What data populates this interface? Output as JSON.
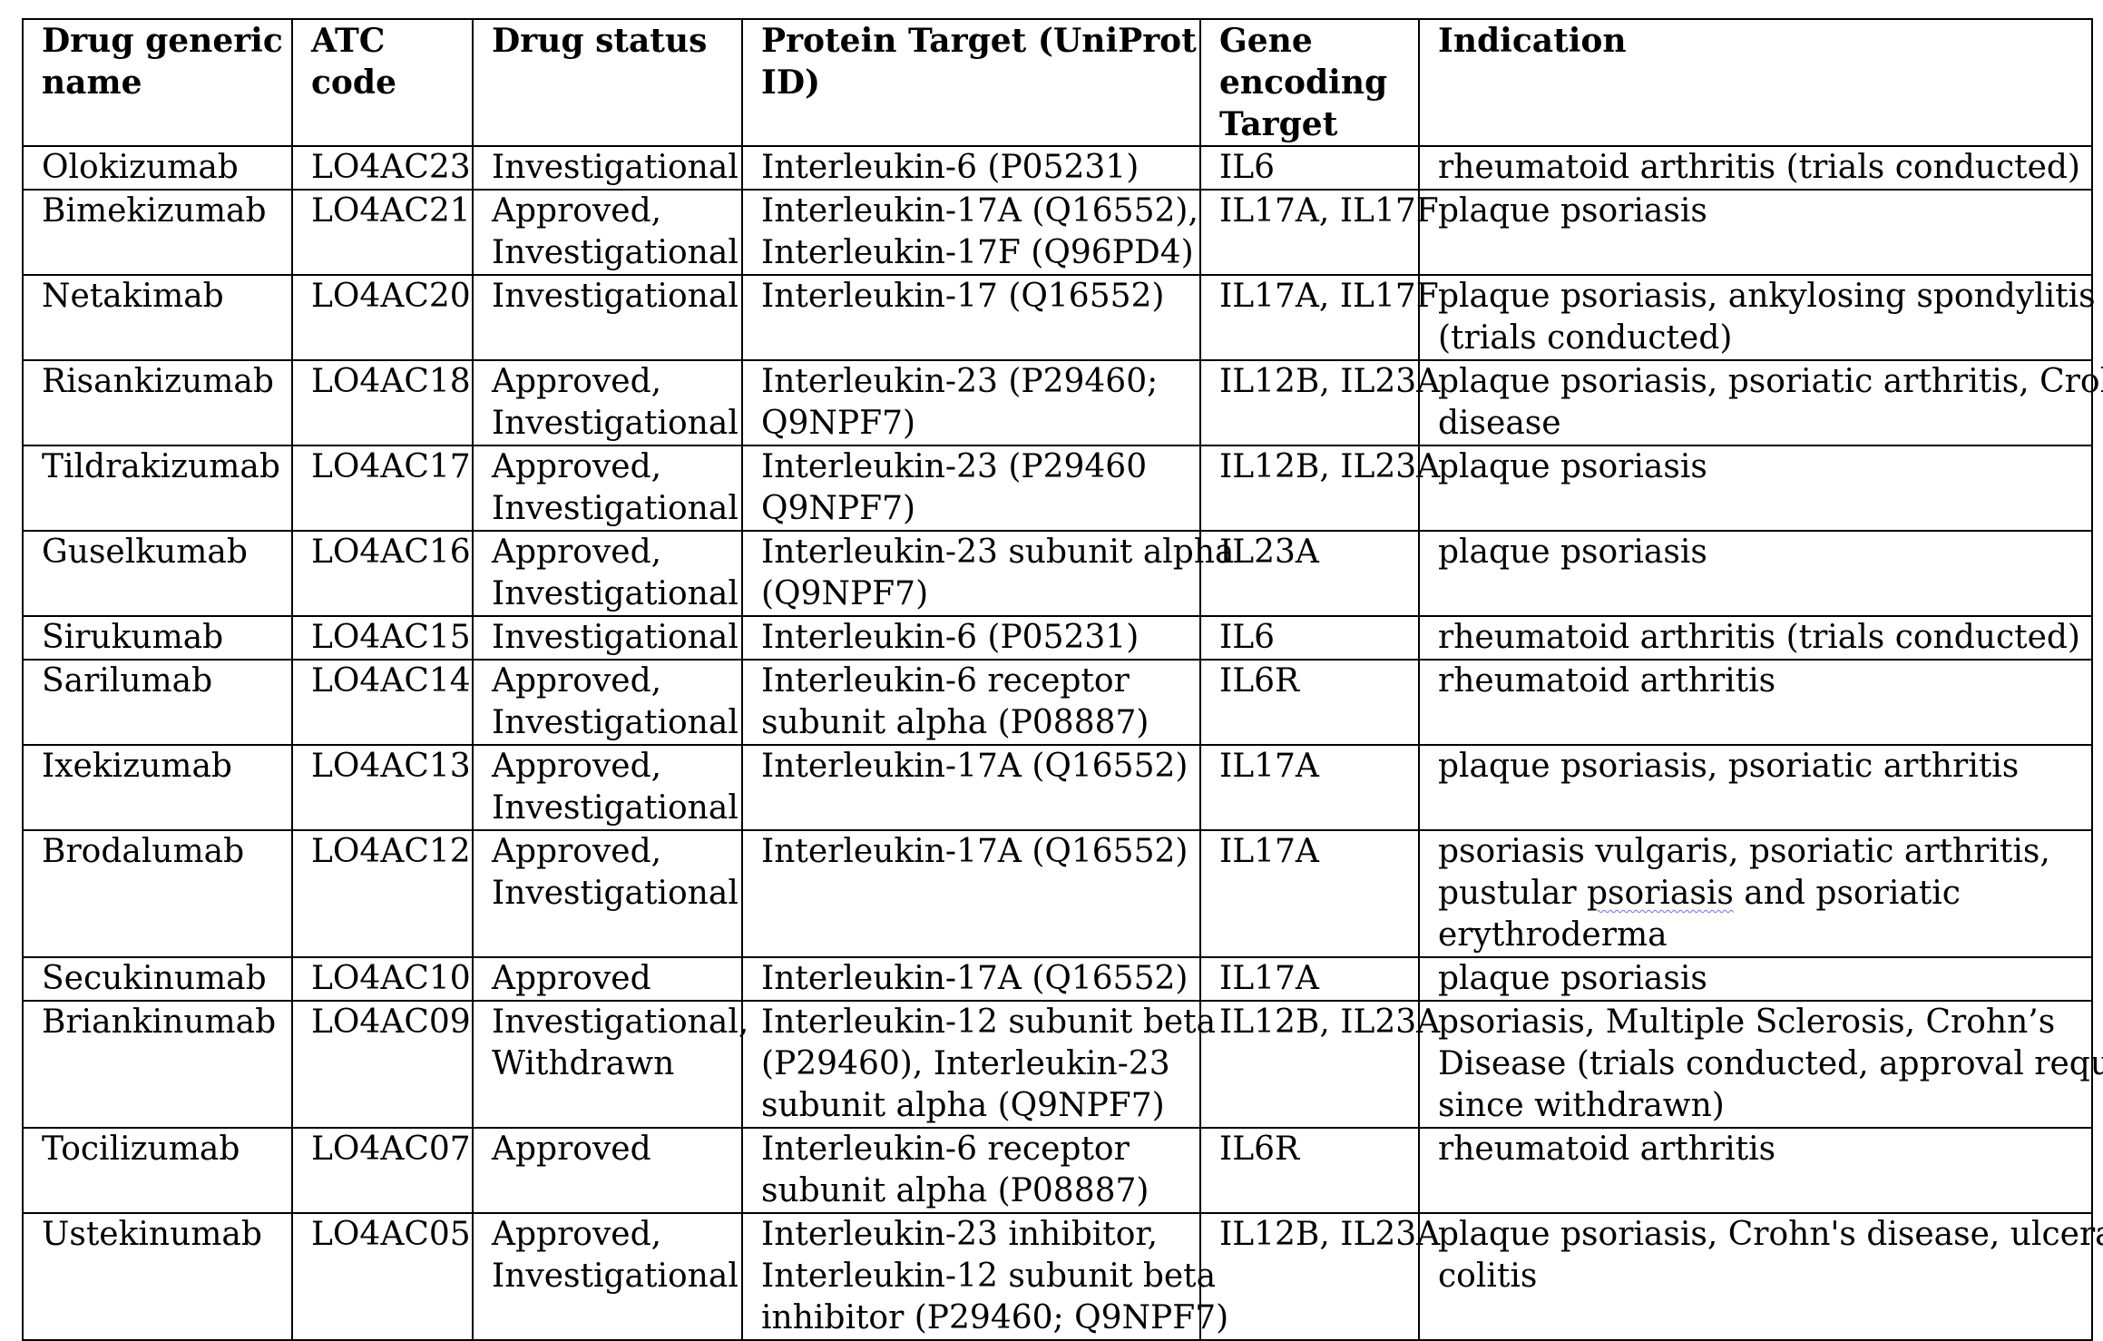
{
  "table": {
    "headers": [
      [
        "Drug generic",
        "name"
      ],
      [
        "ATC",
        "code"
      ],
      [
        "Drug status"
      ],
      [
        "Protein Target (UniProt",
        "ID)"
      ],
      [
        "Gene",
        "encoding",
        "Target"
      ],
      [
        "Indication"
      ]
    ],
    "rows": [
      [
        [
          "Olokizumab"
        ],
        [
          "LO4AC23"
        ],
        [
          "Investigational"
        ],
        [
          "Interleukin-6 (P05231)"
        ],
        [
          "IL6"
        ],
        [
          "rheumatoid arthritis (trials conducted)"
        ]
      ],
      [
        [
          "Bimekizumab"
        ],
        [
          "LO4AC21"
        ],
        [
          "Approved,",
          "Investigational"
        ],
        [
          "Interleukin-17A (Q16552),",
          "Interleukin-17F (Q96PD4)"
        ],
        [
          "IL17A, IL17F"
        ],
        [
          "plaque psoriasis"
        ]
      ],
      [
        [
          "Netakimab"
        ],
        [
          "LO4AC20"
        ],
        [
          "Investigational"
        ],
        [
          "Interleukin-17 (Q16552)"
        ],
        [
          "IL17A, IL17F"
        ],
        [
          "plaque psoriasis, ankylosing spondylitis",
          "(trials conducted)"
        ]
      ],
      [
        [
          "Risankizumab"
        ],
        [
          "LO4AC18"
        ],
        [
          "Approved,",
          "Investigational"
        ],
        [
          "Interleukin-23 (P29460;",
          "Q9NPF7)"
        ],
        [
          "IL12B, IL23A"
        ],
        [
          "plaque psoriasis, psoriatic arthritis, Crohn's",
          "disease"
        ]
      ],
      [
        [
          "Tildrakizumab"
        ],
        [
          "LO4AC17"
        ],
        [
          "Approved,",
          "Investigational"
        ],
        [
          "Interleukin-23 (P29460",
          "Q9NPF7)"
        ],
        [
          "IL12B, IL23A"
        ],
        [
          "plaque psoriasis"
        ]
      ],
      [
        [
          "Guselkumab"
        ],
        [
          "LO4AC16"
        ],
        [
          "Approved,",
          "Investigational"
        ],
        [
          "Interleukin-23 subunit alpha",
          "(Q9NPF7)"
        ],
        [
          "IL23A"
        ],
        [
          "plaque psoriasis"
        ]
      ],
      [
        [
          "Sirukumab"
        ],
        [
          "LO4AC15"
        ],
        [
          "Investigational"
        ],
        [
          "Interleukin-6 (P05231)"
        ],
        [
          "IL6"
        ],
        [
          "rheumatoid arthritis (trials conducted)"
        ]
      ],
      [
        [
          "Sarilumab"
        ],
        [
          "LO4AC14"
        ],
        [
          "Approved,",
          "Investigational"
        ],
        [
          "Interleukin-6 receptor",
          "subunit alpha (P08887)"
        ],
        [
          "IL6R"
        ],
        [
          "rheumatoid arthritis"
        ]
      ],
      [
        [
          "Ixekizumab"
        ],
        [
          "LO4AC13"
        ],
        [
          "Approved,",
          "Investigational"
        ],
        [
          "Interleukin-17A (Q16552)"
        ],
        [
          "IL17A"
        ],
        [
          "plaque psoriasis, psoriatic arthritis"
        ]
      ],
      [
        [
          "Brodalumab"
        ],
        [
          "LO4AC12"
        ],
        [
          "Approved,",
          "Investigational"
        ],
        [
          "Interleukin-17A (Q16552)"
        ],
        [
          "IL17A"
        ],
        [
          "psoriasis vulgaris, psoriatic arthritis,",
          "pustular psoriasis and psoriatic",
          "erythroderma"
        ]
      ],
      [
        [
          "Secukinumab"
        ],
        [
          "LO4AC10"
        ],
        [
          "Approved"
        ],
        [
          "Interleukin-17A (Q16552)"
        ],
        [
          "IL17A"
        ],
        [
          "plaque psoriasis"
        ]
      ],
      [
        [
          "Briankinumab"
        ],
        [
          "LO4AC09"
        ],
        [
          "Investigational,",
          "Withdrawn"
        ],
        [
          "Interleukin-12 subunit beta",
          "(P29460), Interleukin-23",
          "subunit alpha (Q9NPF7)"
        ],
        [
          "IL12B, IL23A"
        ],
        [
          "psoriasis, Multiple Sclerosis, Crohn’s",
          "Disease (trials conducted, approval request",
          "since withdrawn)"
        ]
      ],
      [
        [
          "Tocilizumab"
        ],
        [
          "LO4AC07"
        ],
        [
          "Approved"
        ],
        [
          "Interleukin-6 receptor",
          "subunit alpha (P08887)"
        ],
        [
          "IL6R"
        ],
        [
          "rheumatoid arthritis"
        ]
      ],
      [
        [
          "Ustekinumab"
        ],
        [
          "LO4AC05"
        ],
        [
          "Approved,",
          "Investigational"
        ],
        [
          "Interleukin-23 inhibitor,",
          "Interleukin-12 subunit beta",
          "inhibitor (P29460; Q9NPF7)"
        ],
        [
          "IL12B, IL23A"
        ],
        [
          "plaque psoriasis, Crohn's disease, ulcerative",
          "colitis"
        ]
      ]
    ]
  }
}
